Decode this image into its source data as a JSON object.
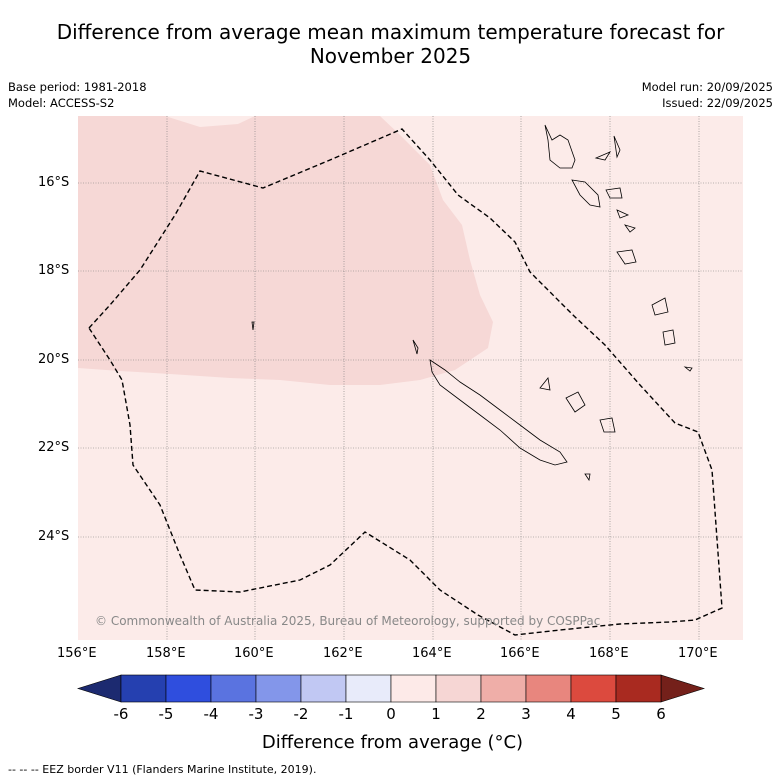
{
  "title_line1": "Difference from average mean maximum temperature forecast for",
  "title_line2": "November 2025",
  "base_period": "Base period: 1981-2018",
  "model": "Model: ACCESS-S2",
  "model_run": "Model run: 20/09/2025",
  "issued": "Issued: 22/09/2025",
  "lat_labels": [
    "16°S",
    "18°S",
    "20°S",
    "22°S",
    "24°S"
  ],
  "lon_labels": [
    "156°E",
    "158°E",
    "160°E",
    "162°E",
    "164°E",
    "166°E",
    "168°E",
    "170°E"
  ],
  "copyright": "© Commonwealth of Australia 2025, Bureau of Meteorology, supported by COSPPac",
  "colorbar": {
    "ticks": [
      "-6",
      "-5",
      "-4",
      "-3",
      "-2",
      "-1",
      "0",
      "1",
      "2",
      "3",
      "4",
      "5",
      "6"
    ],
    "label": "Difference from average (°C)",
    "colors": [
      "#2540b0",
      "#2f4ede",
      "#5a73e0",
      "#8396ea",
      "#c1c8f3",
      "#e8ebfa",
      "#fdeae8",
      "#f6d6d4",
      "#efaea8",
      "#e8867e",
      "#dc4a3e",
      "#a92a20"
    ],
    "extend_low": "#1c2a70",
    "extend_high": "#74201a"
  },
  "footnote": "--  --  -- EEZ border V11 (Flanders Marine Institute, 2019)."
}
